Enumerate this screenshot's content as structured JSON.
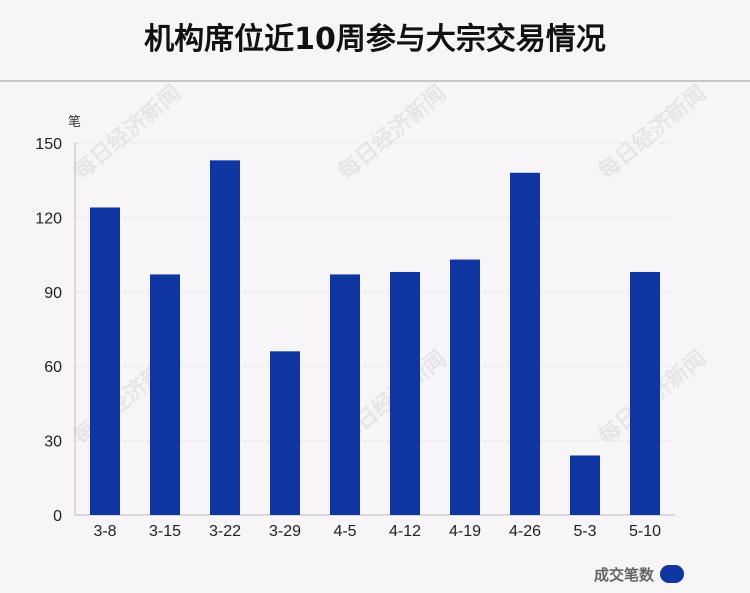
{
  "title": "机构席位近10周参与大宗交易情况",
  "watermark": "每日经济新闻",
  "colors": {
    "bar": "#0e35a0",
    "accent": "#0e35a0"
  },
  "chart_data": {
    "type": "bar",
    "title": "机构席位近10周参与大宗交易情况",
    "ylabel": "笔",
    "xlabel": "",
    "ylim": [
      0,
      150
    ],
    "yticks": [
      0,
      30,
      60,
      90,
      120,
      150
    ],
    "grid": true,
    "legend": "bottom-right",
    "categories": [
      "3-8",
      "3-15",
      "3-22",
      "3-29",
      "4-5",
      "4-12",
      "4-19",
      "4-26",
      "5-3",
      "5-10"
    ],
    "series": [
      {
        "name": "成交笔数",
        "values": [
          124,
          97,
          143,
          66,
          97,
          98,
          103,
          138,
          24,
          98
        ]
      }
    ]
  }
}
